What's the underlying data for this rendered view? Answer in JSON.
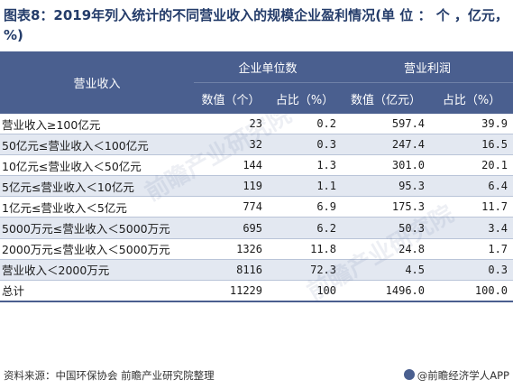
{
  "title": "图表8：2019年列入统计的不同营业收入的规模企业盈利情况(单 位 ： 个 ，亿元，%)",
  "header": {
    "row_label": "营业收入",
    "group_count": "企业单位数",
    "group_profit": "营业利润",
    "count_value": "数值（个）",
    "count_share": "占比（%）",
    "profit_value": "数值（亿元）",
    "profit_share": "占比（%）"
  },
  "rows": [
    {
      "label": "营业收入≥100亿元",
      "count": "23",
      "count_pct": "0.2",
      "profit": "597.4",
      "profit_pct": "39.9"
    },
    {
      "label": "50亿元≤营业收入＜100亿元",
      "count": "32",
      "count_pct": "0.3",
      "profit": "247.4",
      "profit_pct": "16.5"
    },
    {
      "label": "10亿元≤营业收入＜50亿元",
      "count": "144",
      "count_pct": "1.3",
      "profit": "301.0",
      "profit_pct": "20.1"
    },
    {
      "label": "5亿元≤营业收入＜10亿元",
      "count": "119",
      "count_pct": "1.1",
      "profit": "95.3",
      "profit_pct": "6.4"
    },
    {
      "label": "1亿元≤营业收入＜5亿元",
      "count": "774",
      "count_pct": "6.9",
      "profit": "175.3",
      "profit_pct": "11.7"
    },
    {
      "label": "5000万元≤营业收入＜5000万元",
      "count": "695",
      "count_pct": "6.2",
      "profit": "50.3",
      "profit_pct": "3.4"
    },
    {
      "label": "2000万元≤营业收入＜5000万元",
      "count": "1326",
      "count_pct": "11.8",
      "profit": "24.8",
      "profit_pct": "1.7"
    },
    {
      "label": "营业收入＜2000万元",
      "count": "8116",
      "count_pct": "72.3",
      "profit": "4.5",
      "profit_pct": "0.3"
    },
    {
      "label": "总计",
      "count": "11229",
      "count_pct": "100",
      "profit": "1496.0",
      "profit_pct": "100.0"
    }
  ],
  "footer": {
    "source": "资料来源：中国环保协会 前瞻产业研究院整理",
    "brand": "@前瞻经济学人APP"
  },
  "watermark": "前瞻产业研究院"
}
